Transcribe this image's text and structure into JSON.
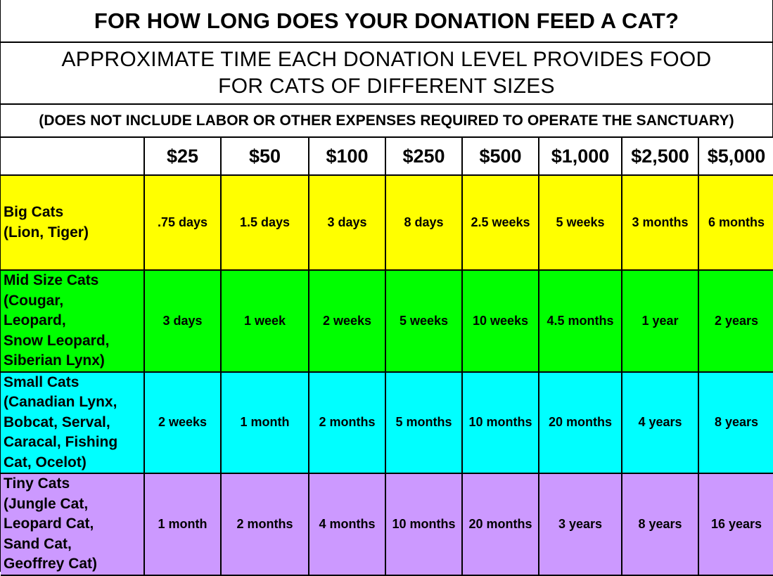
{
  "title": "FOR HOW LONG DOES YOUR DONATION FEED A CAT?",
  "subtitle": {
    "line1": "APPROXIMATE TIME EACH DONATION LEVEL PROVIDES FOOD",
    "line2": "FOR CATS OF DIFFERENT SIZES"
  },
  "note": "(DOES NOT INCLUDE LABOR OR OTHER EXPENSES REQUIRED TO OPERATE THE SANCTUARY)",
  "header": {
    "corner": "",
    "levels": [
      "$25",
      "$50",
      "$100",
      "$250",
      "$500",
      "$1,000",
      "$2,500",
      "$5,000"
    ]
  },
  "colors": {
    "big": "#ffff00",
    "mid": "#00ff00",
    "small": "#00ffff",
    "tiny": "#cc99ff"
  },
  "rows": [
    {
      "label_lines": [
        "Big Cats",
        "(Lion, Tiger)"
      ],
      "values": [
        ".75 days",
        "1.5 days",
        "3 days",
        "8 days",
        "2.5 weeks",
        "5 weeks",
        "3 months",
        "6 months"
      ]
    },
    {
      "label_lines": [
        "Mid Size Cats",
        "(Cougar,",
        "Leopard,",
        "Snow Leopard,",
        "Siberian Lynx)"
      ],
      "values": [
        "3 days",
        "1 week",
        "2 weeks",
        "5 weeks",
        "10 weeks",
        "4.5 months",
        "1 year",
        "2 years"
      ]
    },
    {
      "label_lines": [
        "Small Cats",
        "(Canadian Lynx,",
        "Bobcat, Serval,",
        "Caracal, Fishing",
        "Cat, Ocelot)"
      ],
      "values": [
        "2 weeks",
        "1 month",
        "2 months",
        "5 months",
        "10 months",
        "20 months",
        "4 years",
        "8 years"
      ]
    },
    {
      "label_lines": [
        "Tiny Cats",
        "(Jungle Cat,",
        "Leopard Cat,",
        "Sand Cat,",
        "Geoffrey Cat)"
      ],
      "values": [
        "1 month",
        "2 months",
        "4 months",
        "10 months",
        "20 months",
        "3 years",
        "8 years",
        "16 years"
      ]
    }
  ]
}
